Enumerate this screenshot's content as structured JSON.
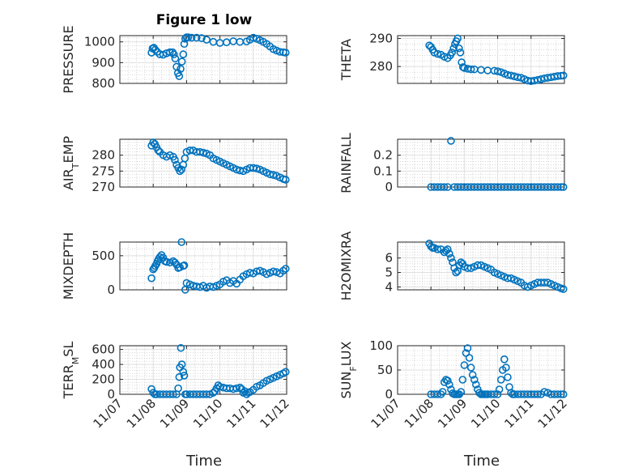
{
  "figure_title": "Figure 1 low",
  "x_axis_label": "Time",
  "x_tick_labels": [
    "11/07",
    "11/08",
    "11/09",
    "11/10",
    "11/11",
    "11/12"
  ],
  "colors": {
    "marker": "#0072BD",
    "axis": "#262626",
    "grid": "#dfdfdf",
    "minor_grid": "#bdbdbd"
  },
  "chart_data": [
    {
      "type": "scatter",
      "title": "Figure 1 low",
      "ylabel": "PRESSURE",
      "ylim": [
        800,
        1030
      ],
      "yticks": [
        800,
        900,
        1000
      ],
      "ytick_labels": [
        "800",
        "900",
        "1000"
      ],
      "xlim": [
        7,
        12
      ],
      "xlabel": "",
      "grid": true,
      "x": [
        7.95,
        7.98,
        8.02,
        8.06,
        8.12,
        8.2,
        8.3,
        8.4,
        8.5,
        8.58,
        8.62,
        8.66,
        8.7,
        8.74,
        8.78,
        8.82,
        8.86,
        8.9,
        8.93,
        8.96,
        9.0,
        9.05,
        9.15,
        9.3,
        9.45,
        9.6,
        9.8,
        10.0,
        10.2,
        10.4,
        10.6,
        10.8,
        10.9,
        11.0,
        11.1,
        11.2,
        11.3,
        11.4,
        11.5,
        11.6,
        11.7,
        11.8,
        11.9,
        11.97
      ],
      "y": [
        948,
        968,
        972,
        962,
        952,
        940,
        938,
        945,
        950,
        950,
        940,
        920,
        880,
        850,
        835,
        870,
        905,
        940,
        990,
        1015,
        1022,
        1022,
        1020,
        1020,
        1018,
        1010,
        1000,
        995,
        998,
        1003,
        1000,
        1002,
        1010,
        1020,
        1015,
        1008,
        1000,
        990,
        978,
        965,
        958,
        952,
        950,
        948
      ]
    },
    {
      "type": "scatter",
      "ylabel": "THETA",
      "ylim": [
        274,
        291
      ],
      "yticks": [
        280,
        290
      ],
      "ytick_labels": [
        "280",
        "290"
      ],
      "xlim": [
        7,
        12
      ],
      "xlabel": "",
      "grid": true,
      "x": [
        7.95,
        8.0,
        8.05,
        8.1,
        8.2,
        8.3,
        8.4,
        8.5,
        8.58,
        8.63,
        8.68,
        8.72,
        8.76,
        8.8,
        8.84,
        8.88,
        8.92,
        8.96,
        9.0,
        9.1,
        9.2,
        9.3,
        9.5,
        9.7,
        9.9,
        10.0,
        10.1,
        10.2,
        10.3,
        10.4,
        10.5,
        10.6,
        10.7,
        10.8,
        10.9,
        11.0,
        11.1,
        11.2,
        11.3,
        11.4,
        11.5,
        11.6,
        11.7,
        11.8,
        11.9,
        11.97
      ],
      "y": [
        287.5,
        287,
        286,
        285,
        284.5,
        284.2,
        283.5,
        283,
        284,
        285,
        286.5,
        288,
        289,
        290,
        286.5,
        285,
        281.5,
        279.8,
        279.5,
        279.2,
        279,
        279,
        278.8,
        278.6,
        278.5,
        278.3,
        278,
        277.5,
        277,
        276.8,
        276.5,
        276.2,
        276,
        275.5,
        275,
        274.8,
        275,
        275.2,
        275.5,
        275.8,
        276,
        276.2,
        276.4,
        276.6,
        276.7,
        276.8
      ]
    },
    {
      "type": "scatter",
      "ylabel": "AIR_TEMP",
      "ylabel_sub": "T",
      "ylim": [
        270,
        285
      ],
      "yticks": [
        270,
        275,
        280
      ],
      "ytick_labels": [
        "270",
        "275",
        "280"
      ],
      "xlim": [
        7,
        12
      ],
      "xlabel": "",
      "grid": true,
      "x": [
        7.95,
        8.0,
        8.05,
        8.1,
        8.15,
        8.2,
        8.3,
        8.4,
        8.5,
        8.6,
        8.65,
        8.7,
        8.75,
        8.8,
        8.85,
        8.9,
        8.95,
        9.0,
        9.1,
        9.2,
        9.3,
        9.4,
        9.5,
        9.6,
        9.7,
        9.8,
        9.9,
        10.0,
        10.1,
        10.2,
        10.3,
        10.4,
        10.5,
        10.6,
        10.7,
        10.8,
        10.9,
        11.0,
        11.1,
        11.2,
        11.3,
        11.4,
        11.5,
        11.6,
        11.7,
        11.8,
        11.9,
        11.97
      ],
      "y": [
        283,
        284,
        283.5,
        282.5,
        281.5,
        281,
        280,
        279.5,
        280,
        279.5,
        278.5,
        277,
        276,
        275,
        275.5,
        277,
        279,
        281,
        281.5,
        281.5,
        281,
        281,
        280.8,
        280.5,
        280,
        279,
        278.5,
        278,
        277.5,
        277,
        276.5,
        276,
        275.5,
        275.2,
        275,
        275.5,
        276,
        276,
        275.8,
        275.5,
        275,
        274.5,
        274,
        273.8,
        273.5,
        273,
        272.5,
        272.3
      ]
    },
    {
      "type": "scatter",
      "ylabel": "RAINFALL",
      "ylim": [
        0,
        0.3
      ],
      "yticks": [
        0,
        0.1,
        0.2
      ],
      "ytick_labels": [
        "0",
        "0.1",
        "0.2"
      ],
      "xlim": [
        7,
        12
      ],
      "xlabel": "",
      "grid": true,
      "x": [
        8.0,
        8.1,
        8.2,
        8.3,
        8.4,
        8.5,
        8.6,
        8.7,
        8.8,
        8.9,
        9.0,
        9.1,
        9.2,
        9.3,
        9.4,
        9.5,
        9.6,
        9.7,
        9.8,
        9.9,
        10.0,
        10.1,
        10.2,
        10.3,
        10.4,
        10.5,
        10.6,
        10.7,
        10.8,
        10.9,
        11.0,
        11.1,
        11.2,
        11.3,
        11.4,
        11.5,
        11.6,
        11.7,
        11.8,
        11.9,
        11.97
      ],
      "y": [
        0,
        0,
        0,
        0,
        0,
        0,
        0.29,
        0,
        0,
        0,
        0,
        0,
        0,
        0,
        0,
        0,
        0,
        0,
        0,
        0,
        0,
        0,
        0,
        0,
        0,
        0,
        0,
        0,
        0,
        0,
        0,
        0,
        0,
        0,
        0,
        0,
        0,
        0,
        0,
        0,
        0
      ]
    },
    {
      "type": "scatter",
      "ylabel": "MIXDEPTH",
      "ylim": [
        0,
        700
      ],
      "yticks": [
        0,
        500
      ],
      "ytick_labels": [
        "0",
        "500"
      ],
      "xlim": [
        7,
        12
      ],
      "xlabel": "",
      "grid": true,
      "x": [
        7.95,
        8.0,
        8.03,
        8.06,
        8.1,
        8.13,
        8.16,
        8.2,
        8.25,
        8.3,
        8.35,
        8.4,
        8.5,
        8.6,
        8.65,
        8.7,
        8.75,
        8.8,
        8.85,
        8.9,
        8.93,
        8.96,
        9.0,
        9.1,
        9.2,
        9.3,
        9.4,
        9.5,
        9.6,
        9.7,
        9.8,
        9.9,
        10.0,
        10.1,
        10.2,
        10.3,
        10.4,
        10.5,
        10.6,
        10.7,
        10.8,
        10.9,
        11.0,
        11.1,
        11.2,
        11.3,
        11.4,
        11.5,
        11.6,
        11.7,
        11.8,
        11.9,
        11.97
      ],
      "y": [
        170,
        300,
        320,
        350,
        380,
        420,
        450,
        480,
        510,
        470,
        420,
        410,
        400,
        420,
        400,
        370,
        320,
        330,
        700,
        350,
        360,
        2,
        100,
        80,
        60,
        50,
        40,
        60,
        30,
        50,
        40,
        60,
        80,
        120,
        140,
        100,
        130,
        90,
        150,
        200,
        230,
        250,
        240,
        270,
        280,
        260,
        230,
        250,
        270,
        260,
        240,
        280,
        310
      ]
    },
    {
      "type": "scatter",
      "ylabel": "H2OMIXRA",
      "ylim": [
        3.8,
        7.1
      ],
      "yticks": [
        4,
        5,
        6
      ],
      "ytick_labels": [
        "4",
        "5",
        "6"
      ],
      "xlim": [
        7,
        12
      ],
      "xlabel": "",
      "grid": true,
      "x": [
        7.95,
        8.0,
        8.05,
        8.1,
        8.2,
        8.3,
        8.4,
        8.45,
        8.5,
        8.55,
        8.6,
        8.65,
        8.7,
        8.75,
        8.8,
        8.85,
        8.9,
        8.95,
        9.0,
        9.1,
        9.2,
        9.3,
        9.4,
        9.5,
        9.6,
        9.7,
        9.8,
        9.9,
        10.0,
        10.1,
        10.2,
        10.3,
        10.4,
        10.5,
        10.6,
        10.7,
        10.8,
        10.9,
        11.0,
        11.1,
        11.2,
        11.3,
        11.4,
        11.5,
        11.6,
        11.7,
        11.8,
        11.9,
        11.97
      ],
      "y": [
        7.0,
        6.8,
        6.7,
        6.7,
        6.6,
        6.6,
        6.4,
        6.5,
        6.6,
        6.3,
        6.0,
        5.7,
        5.3,
        5.0,
        5.1,
        5.5,
        5.7,
        5.6,
        5.4,
        5.3,
        5.3,
        5.4,
        5.5,
        5.5,
        5.4,
        5.3,
        5.2,
        5.0,
        4.9,
        4.8,
        4.7,
        4.6,
        4.6,
        4.5,
        4.4,
        4.3,
        4.1,
        4.0,
        4.1,
        4.2,
        4.3,
        4.3,
        4.3,
        4.3,
        4.2,
        4.1,
        4.0,
        3.9,
        3.85
      ]
    },
    {
      "type": "scatter",
      "ylabel": "TERR_MSL",
      "ylabel_sub": "M",
      "ylim": [
        0,
        650
      ],
      "yticks": [
        0,
        200,
        400,
        600
      ],
      "ytick_labels": [
        "0",
        "200",
        "400",
        "600"
      ],
      "xlim": [
        7,
        12
      ],
      "xlabel": "Time",
      "xtick_labels": [
        "11/07",
        "11/08",
        "11/09",
        "11/10",
        "11/11",
        "11/12"
      ],
      "grid": true,
      "x": [
        7.95,
        8.0,
        8.05,
        8.1,
        8.2,
        8.3,
        8.4,
        8.5,
        8.6,
        8.7,
        8.75,
        8.78,
        8.8,
        8.83,
        8.86,
        8.9,
        8.93,
        8.96,
        9.0,
        9.1,
        9.2,
        9.3,
        9.4,
        9.5,
        9.6,
        9.7,
        9.8,
        9.85,
        9.9,
        9.95,
        10.0,
        10.1,
        10.2,
        10.3,
        10.4,
        10.5,
        10.6,
        10.65,
        10.7,
        10.75,
        10.8,
        10.85,
        10.9,
        11.0,
        11.1,
        11.2,
        11.3,
        11.4,
        11.5,
        11.6,
        11.7,
        11.8,
        11.9,
        11.97
      ],
      "y": [
        70,
        20,
        0,
        0,
        0,
        0,
        0,
        0,
        0,
        0,
        80,
        230,
        360,
        620,
        400,
        300,
        250,
        0,
        0,
        0,
        0,
        0,
        0,
        0,
        0,
        0,
        20,
        40,
        80,
        120,
        100,
        90,
        80,
        80,
        70,
        80,
        90,
        70,
        20,
        40,
        0,
        20,
        30,
        60,
        100,
        120,
        150,
        180,
        200,
        220,
        240,
        260,
        280,
        300
      ]
    },
    {
      "type": "scatter",
      "ylabel": "SUN_FLUX",
      "ylabel_sub": "F",
      "ylim": [
        0,
        100
      ],
      "yticks": [
        0,
        50,
        100
      ],
      "ytick_labels": [
        "0",
        "50",
        "100"
      ],
      "xlim": [
        7,
        12
      ],
      "xlabel": "Time",
      "xtick_labels": [
        "11/07",
        "11/08",
        "11/09",
        "11/10",
        "11/11",
        "11/12"
      ],
      "grid": true,
      "x": [
        8.0,
        8.1,
        8.2,
        8.3,
        8.35,
        8.4,
        8.45,
        8.5,
        8.55,
        8.6,
        8.65,
        8.7,
        8.75,
        8.8,
        8.85,
        8.9,
        8.95,
        9.0,
        9.05,
        9.1,
        9.15,
        9.2,
        9.25,
        9.3,
        9.35,
        9.4,
        9.45,
        9.5,
        9.55,
        9.6,
        9.65,
        9.7,
        9.8,
        9.9,
        10.0,
        10.05,
        10.1,
        10.15,
        10.2,
        10.25,
        10.3,
        10.35,
        10.4,
        10.45,
        10.5,
        10.6,
        10.7,
        10.8,
        10.9,
        11.0,
        11.1,
        11.2,
        11.3,
        11.4,
        11.5,
        11.6,
        11.7,
        11.8,
        11.9,
        11.97
      ],
      "y": [
        0,
        0,
        0,
        0,
        5,
        25,
        30,
        28,
        20,
        10,
        2,
        0,
        0,
        0,
        0,
        5,
        30,
        60,
        85,
        95,
        75,
        55,
        40,
        30,
        20,
        10,
        3,
        0,
        0,
        0,
        0,
        0,
        0,
        0,
        0,
        10,
        30,
        50,
        72,
        55,
        35,
        15,
        3,
        0,
        0,
        0,
        0,
        0,
        0,
        0,
        0,
        0,
        0,
        5,
        3,
        0,
        0,
        0,
        0,
        0
      ]
    }
  ]
}
